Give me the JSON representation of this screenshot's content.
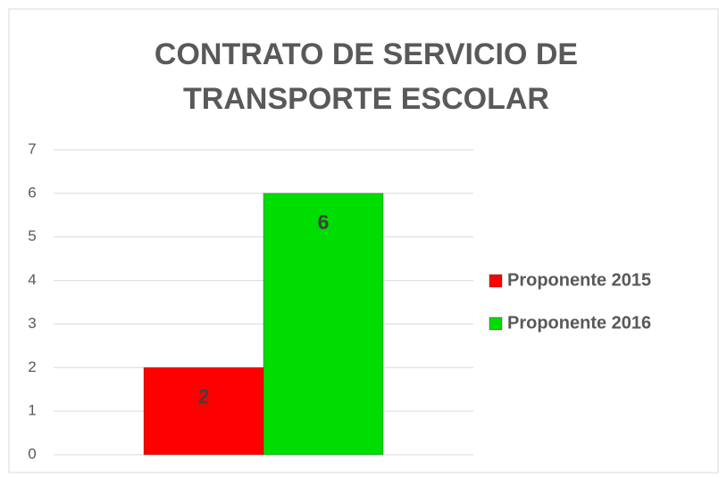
{
  "chart_data": {
    "type": "bar",
    "title": "CONTRATO DE SERVICIO DE TRANSPORTE ESCOLAR",
    "categories": [
      null
    ],
    "series": [
      {
        "name": "Proponente 2015",
        "color": "#ff0000",
        "values": [
          2
        ]
      },
      {
        "name": "Proponente 2016",
        "color": "#00dd00",
        "values": [
          6
        ]
      }
    ],
    "ylim": [
      0,
      7
    ],
    "yticks": [
      0,
      1,
      2,
      3,
      4,
      5,
      6,
      7
    ],
    "grid": true,
    "legend": "right",
    "data_labels": true
  }
}
